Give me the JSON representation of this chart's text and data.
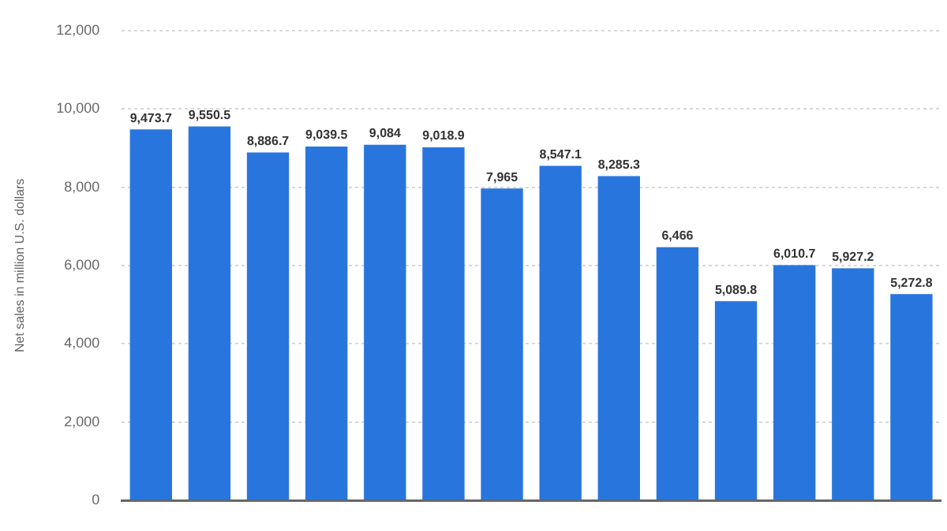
{
  "chart_data": {
    "type": "bar",
    "ylabel": "Net sales in million U.S. dollars",
    "categories": [
      null,
      null,
      null,
      null,
      null,
      null,
      null,
      null,
      null,
      null,
      null,
      null,
      null,
      null
    ],
    "values": [
      9473.7,
      9550.5,
      8886.7,
      9039.5,
      9084,
      9018.9,
      7965,
      8547.1,
      8285.3,
      6466,
      5089.8,
      6010.7,
      5927.2,
      5272.8
    ],
    "value_labels": [
      "9,473.7",
      "9,550.5",
      "8,886.7",
      "9,039.5",
      "9,084",
      "9,018.9",
      "7,965",
      "8,547.1",
      "8,285.3",
      "6,466",
      "5,089.8",
      "6,010.7",
      "5,927.2",
      "5,272.8"
    ],
    "color": "#2876dd",
    "ylim": [
      0,
      12000
    ],
    "yticks": [
      0,
      {
        "value": 2000,
        "label": "2,000"
      },
      {
        "value": 4000,
        "label": "4,000"
      },
      {
        "value": 6000,
        "label": "6,000"
      },
      {
        "value": 8000,
        "label": "8,000"
      },
      {
        "value": 10000,
        "label": "10,000"
      },
      {
        "value": 12000,
        "label": "12,000"
      }
    ],
    "grid": "y",
    "tick_labels": "y"
  }
}
